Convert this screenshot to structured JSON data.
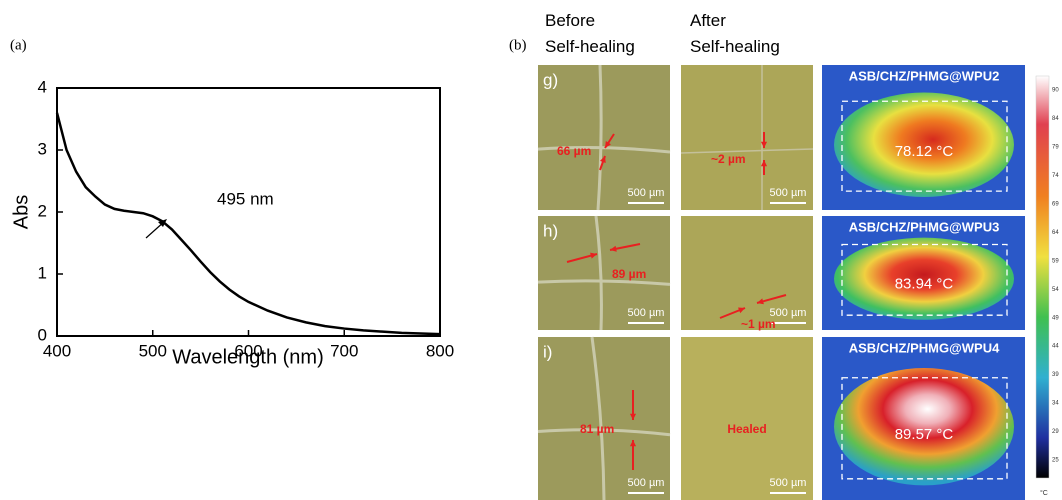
{
  "chart_data": {
    "type": "line",
    "panel_label": "(a)",
    "x_label": "Wavelength (nm)",
    "y_label": "Abs",
    "annotation": "495 nm",
    "x": [
      400,
      410,
      420,
      430,
      440,
      450,
      460,
      470,
      480,
      490,
      500,
      510,
      520,
      530,
      540,
      550,
      560,
      570,
      580,
      590,
      600,
      620,
      640,
      660,
      680,
      700,
      720,
      740,
      760,
      780,
      800
    ],
    "series": [
      {
        "color": "#000000",
        "values": [
          3.6,
          3.0,
          2.65,
          2.4,
          2.25,
          2.12,
          2.05,
          2.02,
          2.0,
          1.98,
          1.93,
          1.85,
          1.72,
          1.55,
          1.38,
          1.2,
          1.03,
          0.88,
          0.75,
          0.64,
          0.55,
          0.41,
          0.3,
          0.22,
          0.16,
          0.12,
          0.09,
          0.07,
          0.05,
          0.04,
          0.03
        ]
      }
    ],
    "xlim": [
      400,
      800
    ],
    "xticks": [
      400,
      500,
      600,
      700,
      800
    ],
    "ylim": [
      0,
      4
    ],
    "yticks": [
      0,
      1,
      2,
      3,
      4
    ],
    "grid": false
  },
  "panel_b": {
    "panel_label": "(b)",
    "column_headers": [
      "Before Self-healing",
      "After Self-healing"
    ],
    "rows": [
      {
        "label": "g)",
        "before": "66 µm",
        "after": "~2 µm",
        "scale_before": "500 µm",
        "scale_after": "500 µm",
        "sample": "ASB/CHZ/PHMG@WPU2",
        "temperature": "78.12 °C"
      },
      {
        "label": "h)",
        "before": "89 µm",
        "after": "~1 µm",
        "scale_before": "500 µm",
        "scale_after": "500 µm",
        "sample": "ASB/CHZ/PHMG@WPU3",
        "temperature": "83.94 °C"
      },
      {
        "label": "i)",
        "before": "81 µm",
        "after": "Healed",
        "scale_before": "500 µm",
        "scale_after": "500 µm",
        "sample": "ASB/CHZ/PHMG@WPU4",
        "temperature": "89.57 °C"
      }
    ],
    "colorbar_labels": [
      "90",
      "84",
      "79",
      "74",
      "69",
      "64",
      "59",
      "54",
      "49",
      "44",
      "39",
      "34",
      "29",
      "25"
    ],
    "colorbar_unit": "°C"
  }
}
